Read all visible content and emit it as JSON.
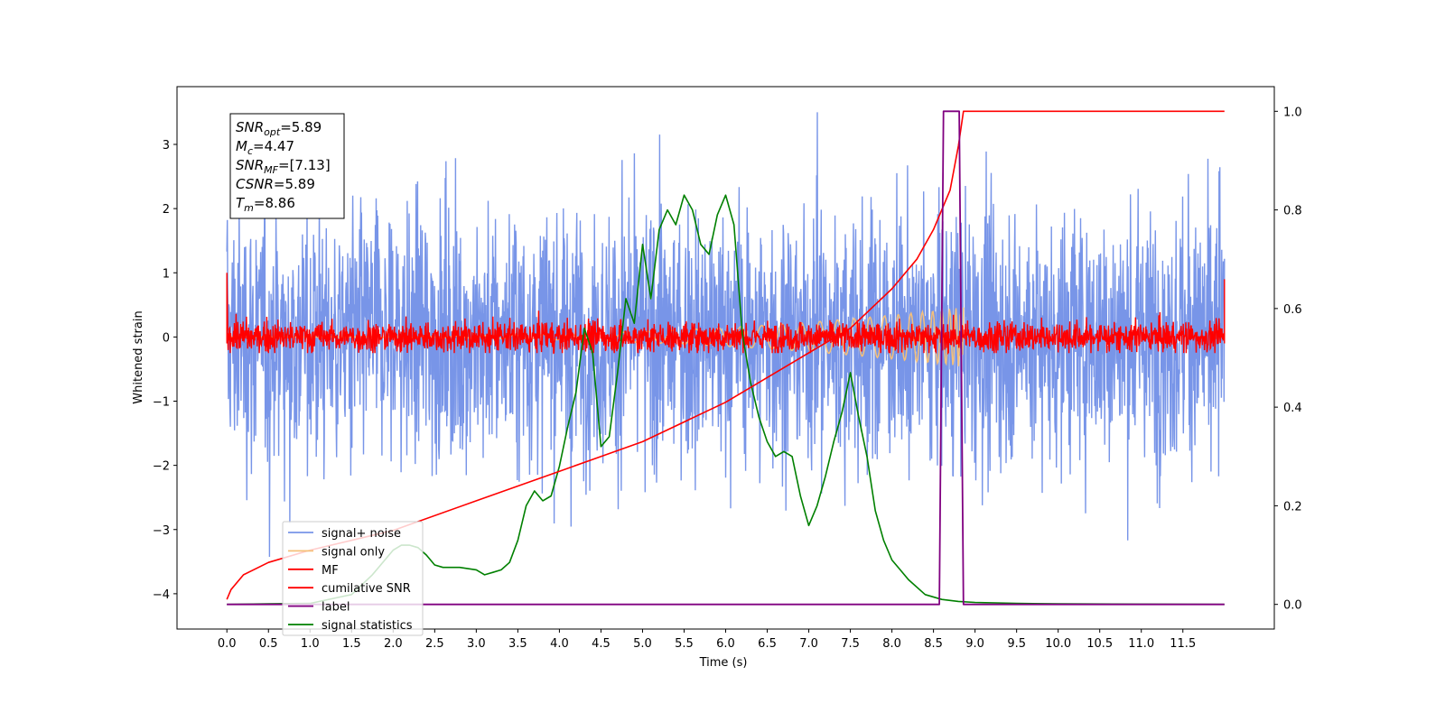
{
  "chart_data": {
    "type": "line",
    "xlabel": "Time (s)",
    "ylabel": "Whitened strain",
    "xlim": [
      -0.6,
      12.6
    ],
    "ylim": [
      -4.55,
      3.9
    ],
    "y2lim": [
      -0.05,
      1.05
    ],
    "x_ticks": [
      "0.0",
      "0.5",
      "1.0",
      "1.5",
      "2.0",
      "2.5",
      "3.0",
      "3.5",
      "4.0",
      "4.5",
      "5.0",
      "5.5",
      "6.0",
      "6.5",
      "7.0",
      "7.5",
      "8.0",
      "8.5",
      "9.0",
      "9.5",
      "10.0",
      "10.5",
      "11.0",
      "11.5"
    ],
    "y_ticks": [
      "3",
      "2",
      "1",
      "0",
      "−1",
      "−2",
      "−3",
      "−4"
    ],
    "y2_ticks": [
      "1.0",
      "0.8",
      "0.6",
      "0.4",
      "0.2",
      "0.0"
    ],
    "annotation": {
      "lines": [
        {
          "sym": "SNR",
          "sub": "opt",
          "value": "=5.89"
        },
        {
          "sym": "M",
          "sub": "c",
          "value": "=4.47"
        },
        {
          "sym": "SNR",
          "sub": "MF",
          "value": "=[7.13]"
        },
        {
          "sym": "CSNR",
          "sub": "",
          "value": "=5.89"
        },
        {
          "sym": "T",
          "sub": "m",
          "value": "=8.86"
        }
      ]
    },
    "legend": {
      "placement": "lower-left",
      "entries": [
        {
          "label": "signal+ noise",
          "color": "#7895e8"
        },
        {
          "label": "signal only",
          "color": "#f5c07a"
        },
        {
          "label": "MF",
          "color": "#ff0000"
        },
        {
          "label": "cumilative SNR",
          "color": "#ff0000"
        },
        {
          "label": "label",
          "color": "#800080"
        },
        {
          "label": "signal statistics",
          "color": "#008000"
        }
      ]
    },
    "series": [
      {
        "name": "signal+ noise",
        "axis": "left",
        "color": "#7895e8",
        "kind": "noise",
        "x_range": [
          0.0,
          12.0
        ],
        "approx_amplitude": 1.0,
        "approx_range": [
          -3.6,
          3.5
        ]
      },
      {
        "name": "signal only",
        "axis": "left",
        "color": "#f5c07a",
        "kind": "chirp",
        "x_range": [
          0.0,
          8.86
        ],
        "peak_amplitude": 0.45
      },
      {
        "name": "MF",
        "axis": "left",
        "color": "#ff0000",
        "kind": "noise",
        "x_range": [
          0.0,
          12.0
        ],
        "approx_amplitude": 0.12,
        "approx_range": [
          -0.25,
          1.0
        ]
      },
      {
        "name": "cumilative SNR",
        "axis": "right",
        "color": "#ff0000",
        "x": [
          0.0,
          0.05,
          0.2,
          0.5,
          1.0,
          1.5,
          2.0,
          3.0,
          4.0,
          5.0,
          6.0,
          7.0,
          7.5,
          8.0,
          8.3,
          8.5,
          8.7,
          8.8,
          8.86,
          12.0
        ],
        "y": [
          0.01,
          0.03,
          0.06,
          0.085,
          0.11,
          0.13,
          0.15,
          0.21,
          0.27,
          0.33,
          0.41,
          0.51,
          0.56,
          0.64,
          0.7,
          0.76,
          0.84,
          0.93,
          1.0,
          1.0
        ]
      },
      {
        "name": "label",
        "axis": "right",
        "color": "#800080",
        "x": [
          0.0,
          8.57,
          8.62,
          8.81,
          8.86,
          12.0
        ],
        "y": [
          0.0,
          0.0,
          1.0,
          1.0,
          0.0,
          0.0
        ]
      },
      {
        "name": "signal statistics",
        "axis": "right",
        "color": "#008000",
        "x": [
          0.0,
          0.5,
          1.0,
          1.5,
          1.75,
          1.85,
          2.0,
          2.1,
          2.2,
          2.3,
          2.4,
          2.5,
          2.6,
          2.8,
          3.0,
          3.1,
          3.2,
          3.3,
          3.4,
          3.5,
          3.6,
          3.7,
          3.8,
          3.9,
          4.0,
          4.1,
          4.2,
          4.3,
          4.4,
          4.5,
          4.6,
          4.7,
          4.8,
          4.9,
          5.0,
          5.1,
          5.2,
          5.3,
          5.4,
          5.5,
          5.6,
          5.7,
          5.8,
          5.9,
          6.0,
          6.1,
          6.2,
          6.3,
          6.4,
          6.5,
          6.6,
          6.7,
          6.8,
          6.9,
          7.0,
          7.1,
          7.2,
          7.3,
          7.4,
          7.5,
          7.6,
          7.7,
          7.8,
          7.9,
          8.0,
          8.1,
          8.2,
          8.4,
          8.6,
          8.8,
          9.0,
          9.5,
          10.0,
          11.0,
          12.0
        ],
        "y": [
          0.0,
          0.001,
          0.002,
          0.02,
          0.06,
          0.08,
          0.11,
          0.12,
          0.12,
          0.115,
          0.1,
          0.08,
          0.075,
          0.075,
          0.07,
          0.06,
          0.065,
          0.07,
          0.085,
          0.13,
          0.2,
          0.23,
          0.21,
          0.22,
          0.28,
          0.36,
          0.43,
          0.56,
          0.51,
          0.32,
          0.34,
          0.47,
          0.62,
          0.57,
          0.73,
          0.62,
          0.76,
          0.8,
          0.77,
          0.83,
          0.8,
          0.73,
          0.71,
          0.79,
          0.83,
          0.77,
          0.55,
          0.45,
          0.38,
          0.33,
          0.3,
          0.31,
          0.3,
          0.22,
          0.16,
          0.2,
          0.26,
          0.33,
          0.39,
          0.47,
          0.38,
          0.3,
          0.19,
          0.13,
          0.09,
          0.07,
          0.05,
          0.02,
          0.01,
          0.006,
          0.004,
          0.002,
          0.001,
          0.0005,
          0.0
        ]
      }
    ]
  }
}
